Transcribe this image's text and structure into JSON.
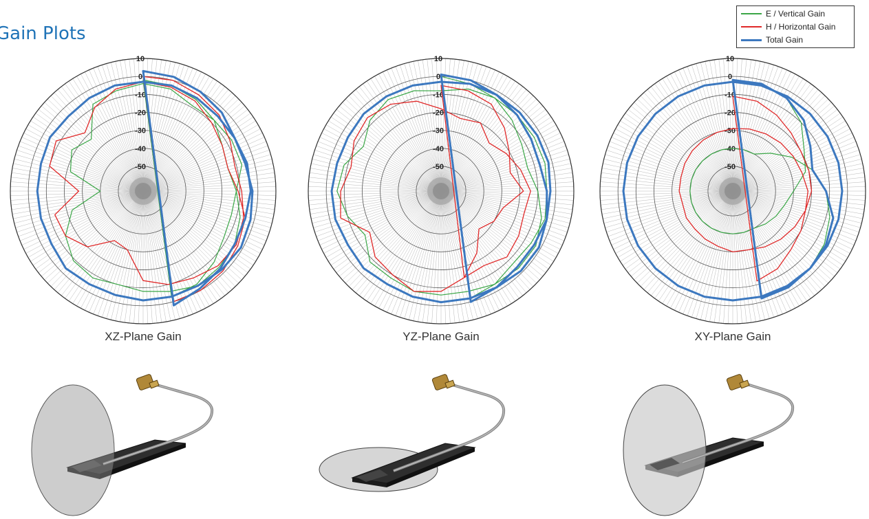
{
  "header": {
    "title": "Gain Plots"
  },
  "legend": {
    "items": [
      {
        "label": "E / Vertical Gain",
        "color": "#3aa646"
      },
      {
        "label": "H / Horizontal Gain",
        "color": "#e02828"
      },
      {
        "label": "Total Gain",
        "color": "#3c78bf"
      }
    ]
  },
  "chart_data": [
    {
      "type": "polar-line",
      "title": "XZ-Plane Gain",
      "radial_ticks": [
        "10",
        "0",
        "-10",
        "-20",
        "-30",
        "-40",
        "-50"
      ],
      "r_range": [
        -55,
        10
      ],
      "angle_step_deg": 15,
      "angle_zero": "top, clockwise",
      "series": [
        {
          "name": "E / Vertical Gain",
          "values": [
            -2,
            -3,
            -5,
            -8,
            -13,
            -15,
            -12,
            -8,
            -5,
            -4,
            -3,
            -6,
            -8,
            -10,
            -8,
            -9,
            -14,
            -23,
            -40,
            -22,
            -18,
            -23,
            -8,
            -6,
            -4,
            -5,
            -9,
            -8,
            -7,
            -7,
            -12,
            -13,
            -12,
            -8,
            -4,
            -3
          ]
        },
        {
          "name": "H / Horizontal Gain",
          "values": [
            0,
            0,
            -2,
            -4,
            -8,
            -11,
            -9,
            -6,
            -4,
            -5,
            -8,
            -10,
            -14,
            -30,
            -32,
            -20,
            -14,
            -13,
            -28,
            -10,
            -8,
            -18,
            -10,
            -5,
            -3,
            -4,
            -6,
            -10,
            -13,
            -15,
            -11,
            -5,
            -3,
            -1,
            0,
            0
          ]
        },
        {
          "name": "Total Gain",
          "values": [
            3,
            2,
            0,
            -2,
            -5,
            -5,
            -3,
            -2,
            -1,
            -2,
            -3,
            -3,
            -3,
            -4,
            -4,
            -3,
            -5,
            -5,
            -5,
            -5,
            -4,
            -5,
            -4,
            -3,
            -3,
            -3,
            -4,
            -5,
            -5,
            -4,
            -4,
            -5,
            -5,
            -3,
            -1,
            2
          ]
        }
      ]
    },
    {
      "type": "polar-line",
      "title": "YZ-Plane Gain",
      "radial_ticks": [
        "10",
        "0",
        "-10",
        "-20",
        "-30",
        "-40",
        "-50"
      ],
      "r_range": [
        -55,
        10
      ],
      "angle_step_deg": 15,
      "angle_zero": "top, clockwise",
      "series": [
        {
          "name": "E / Vertical Gain",
          "values": [
            0,
            -2,
            -4,
            -8,
            -12,
            -14,
            -10,
            -6,
            -3,
            -3,
            -4,
            -6,
            -6,
            -6,
            -8,
            -8,
            -15,
            -10,
            -6,
            -8,
            -14,
            -8,
            -5,
            -6,
            -8,
            -5,
            -4,
            -4,
            -4,
            -4,
            -5,
            -4,
            -6,
            -7,
            -4,
            -2
          ]
        },
        {
          "name": "H / Horizontal Gain",
          "values": [
            -5,
            -6,
            -8,
            -14,
            -20,
            -24,
            -18,
            -28,
            -30,
            -34,
            -24,
            -14,
            -8,
            -6,
            -10,
            -12,
            -18,
            -6,
            -8,
            -12,
            -8,
            -6,
            -8,
            -12,
            -18,
            -22,
            -20,
            -26,
            -22,
            -18,
            -14,
            -16,
            -14,
            -12,
            -16,
            -14
          ]
        },
        {
          "name": "Total Gain",
          "values": [
            1,
            0,
            -2,
            -4,
            -6,
            -7,
            -5,
            -3,
            -1,
            -1,
            -2,
            -2,
            -2,
            -3,
            -4,
            -3,
            -4,
            -3,
            -3,
            -4,
            -4,
            -3,
            -3,
            -3,
            -3,
            -2,
            -2,
            -2,
            -2,
            -2,
            -3,
            -3,
            -4,
            -4,
            -2,
            0
          ]
        }
      ]
    },
    {
      "type": "polar-line",
      "title": "XY-Plane Gain",
      "radial_ticks": [
        "10",
        "0",
        "-10",
        "-20",
        "-30",
        "-40",
        "-50"
      ],
      "r_range": [
        -55,
        10
      ],
      "angle_step_deg": 15,
      "angle_zero": "top, clockwise",
      "series": [
        {
          "name": "E / Vertical Gain",
          "values": [
            -2,
            -2,
            -4,
            -10,
            -18,
            -22,
            -30,
            -34,
            -36,
            -38,
            -40,
            -40,
            -40,
            -40,
            -40,
            -40,
            -40,
            -40,
            -40,
            -40,
            -40,
            -40,
            -40,
            -40,
            -40,
            -40,
            -40,
            -34,
            -26,
            -18,
            -12,
            -8,
            -5,
            -3,
            -2,
            -2
          ]
        },
        {
          "name": "H / Horizontal Gain",
          "values": [
            -11,
            -12,
            -15,
            -18,
            -20,
            -20,
            -20,
            -22,
            -24,
            -26,
            -28,
            -30,
            -30,
            -32,
            -33,
            -34,
            -34,
            -35,
            -34,
            -34,
            -33,
            -32,
            -31,
            -30,
            -29,
            -28,
            -27,
            -26,
            -25,
            -24,
            -22,
            -22,
            -20,
            -18,
            -14,
            -12
          ]
        },
        {
          "name": "Total Gain",
          "values": [
            -2,
            -2,
            -4,
            -8,
            -14,
            -18,
            -12,
            -6,
            -4,
            -3,
            -3,
            -3,
            -3,
            -3,
            -3,
            -3,
            -3,
            -3,
            -3,
            -3,
            -3,
            -3,
            -3,
            -3,
            -3,
            -3,
            -3,
            -3,
            -3,
            -3,
            -3,
            -3,
            -3,
            -3,
            -2,
            -2
          ]
        }
      ]
    }
  ]
}
